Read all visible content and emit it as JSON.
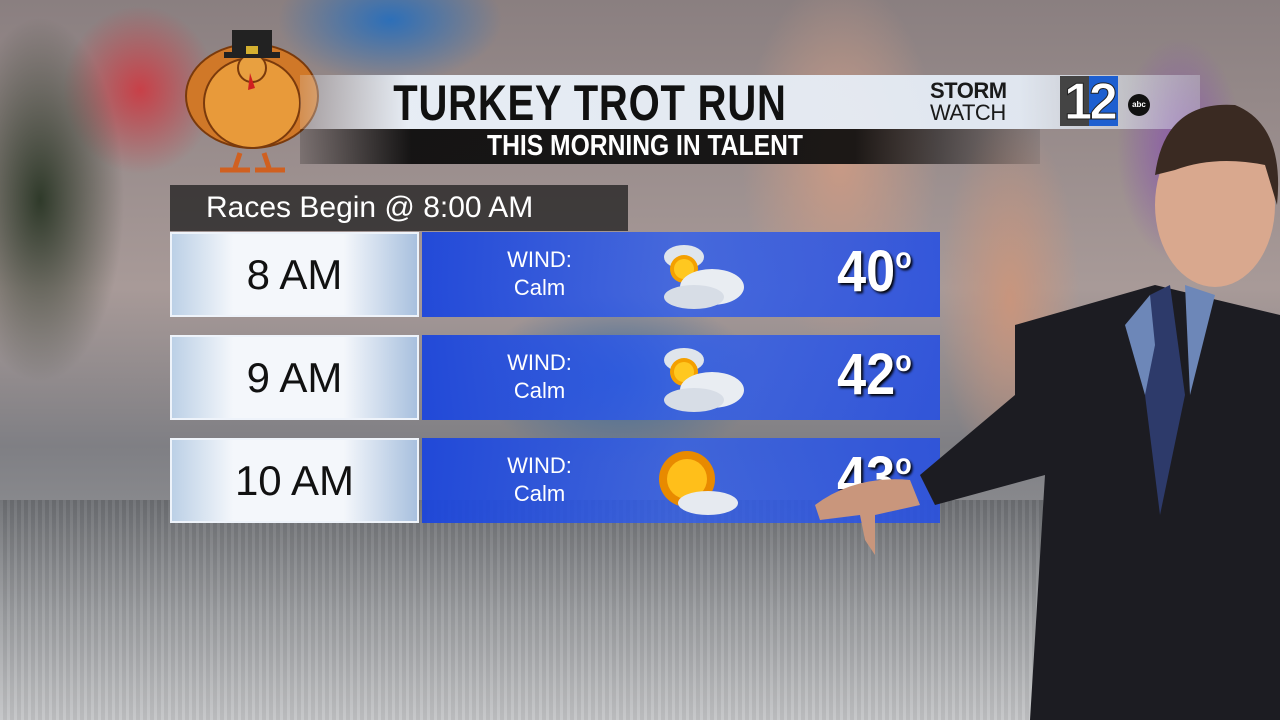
{
  "header": {
    "title": "TURKEY TROT RUN",
    "subtitle": "THIS MORNING IN TALENT"
  },
  "logo": {
    "line1": "STORM",
    "line2": "WATCH",
    "number": "12",
    "network": "abc"
  },
  "note": "Races Begin @ 8:00 AM",
  "forecast": [
    {
      "time": "8 AM",
      "wind_label": "WIND:",
      "wind": "Calm",
      "icon": "partly-cloudy-icon",
      "temp": "40",
      "unit": "o"
    },
    {
      "time": "9 AM",
      "wind_label": "WIND:",
      "wind": "Calm",
      "icon": "partly-cloudy-icon",
      "temp": "42",
      "unit": "o"
    },
    {
      "time": "10 AM",
      "wind_label": "WIND:",
      "wind": "Calm",
      "icon": "mostly-sunny-icon",
      "temp": "43",
      "unit": "o"
    }
  ],
  "colors": {
    "panel_blue": "#2a5ae0",
    "title_bar": "#e8eff8",
    "subtitle_bar": "#0a0a0a"
  }
}
